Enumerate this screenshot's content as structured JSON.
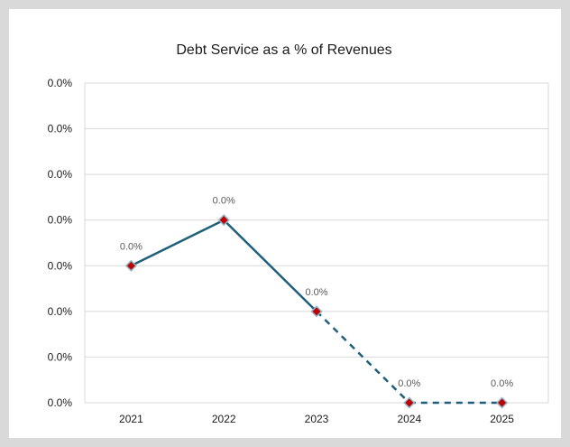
{
  "chart_data": {
    "type": "line",
    "title": "Debt Service as a % of Revenues",
    "categories": [
      "2021",
      "2022",
      "2023",
      "2024",
      "2025"
    ],
    "series": [
      {
        "values": [
          0.0006,
          0.0008,
          0.0004,
          0.0,
          0.0
        ]
      }
    ],
    "data_labels": [
      "0.0%",
      "0.0%",
      "0.0%",
      "0.0%",
      "0.0%"
    ],
    "y_tick_labels": [
      "0.0%",
      "0.0%",
      "0.0%",
      "0.0%",
      "0.0%",
      "0.0%",
      "0.0%",
      "0.0%"
    ],
    "ylim": [
      0,
      0.0014
    ],
    "grid": true,
    "line_color": "#1f5f7a",
    "marker_color": "#c00000",
    "dashed_from_index": 2
  }
}
